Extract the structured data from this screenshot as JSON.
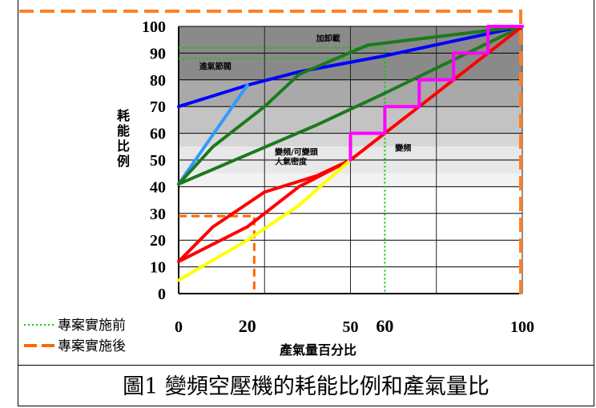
{
  "chart_data": {
    "type": "line",
    "ylabel": "耗能比例",
    "xlabel": "產氣量百分比",
    "xlim": [
      0,
      100
    ],
    "ylim": [
      0,
      100
    ],
    "y_ticks": [
      "0",
      "10",
      "20",
      "30",
      "40",
      "50",
      "60",
      "70",
      "80",
      "90",
      "100"
    ],
    "x_ticks": [
      {
        "value": 0,
        "label": "0"
      },
      {
        "value": 20,
        "label": "20"
      },
      {
        "value": 50,
        "label": "50"
      },
      {
        "value": 60,
        "label": "60"
      },
      {
        "value": 100,
        "label": "100"
      }
    ],
    "region_labels": [
      {
        "text": "加卸載",
        "x": 40,
        "y": 94.5
      },
      {
        "text": "進氣節閥",
        "x": 6,
        "y": 84
      },
      {
        "text": "變頻/可變頭\n大氣密度",
        "x": 28,
        "y": 52
      },
      {
        "text": "變頻",
        "x": 63,
        "y": 53.5
      }
    ],
    "series": [
      {
        "color": "#0000ff",
        "points": [
          [
            0,
            70
          ],
          [
            20,
            78
          ],
          [
            35,
            83
          ],
          [
            60,
            89
          ],
          [
            100,
            100
          ]
        ]
      },
      {
        "color": "#3399ff",
        "points": [
          [
            0,
            41
          ],
          [
            20,
            78
          ]
        ]
      },
      {
        "color": "#1b7a1b",
        "points": [
          [
            0,
            41
          ],
          [
            10,
            55
          ],
          [
            25,
            70
          ],
          [
            35,
            82
          ],
          [
            55,
            93
          ],
          [
            100,
            100
          ]
        ]
      },
      {
        "color": "#1b7a1b",
        "points": [
          [
            0,
            41
          ],
          [
            20,
            52
          ],
          [
            40,
            63
          ],
          [
            60,
            75
          ],
          [
            100,
            100
          ]
        ]
      },
      {
        "color": "#ff0000",
        "points": [
          [
            0,
            12
          ],
          [
            10,
            25
          ],
          [
            25,
            38
          ],
          [
            40,
            44
          ],
          [
            50,
            50
          ],
          [
            60,
            60
          ],
          [
            100,
            100
          ]
        ]
      },
      {
        "color": "#ff0000",
        "points": [
          [
            0,
            12
          ],
          [
            20,
            25
          ],
          [
            35,
            40
          ],
          [
            50,
            50
          ]
        ]
      },
      {
        "color": "#ffff00",
        "points": [
          [
            0,
            5
          ],
          [
            20,
            20
          ],
          [
            35,
            33
          ],
          [
            50,
            50
          ]
        ]
      },
      {
        "color": "#ff00ff",
        "points": [
          [
            50,
            50
          ],
          [
            50,
            60
          ],
          [
            60,
            60
          ],
          [
            60,
            70
          ],
          [
            70,
            70
          ],
          [
            70,
            80
          ],
          [
            80,
            80
          ],
          [
            80,
            90
          ],
          [
            90,
            90
          ],
          [
            90,
            100
          ],
          [
            100,
            100
          ]
        ]
      }
    ],
    "reference_lines": {
      "before": {
        "color": "#00cc00",
        "style": "dotted",
        "points": [
          [
            0,
            92
          ],
          [
            60,
            92
          ],
          [
            60,
            0
          ]
        ],
        "hline2": [
          [
            0,
            88
          ],
          [
            60,
            88
          ]
        ]
      },
      "after": {
        "color": "#ff6600",
        "style": "dashed",
        "points": [
          [
            0,
            29
          ],
          [
            22,
            29
          ],
          [
            22,
            0
          ]
        ]
      }
    },
    "background_bands": [
      {
        "y0": 80,
        "y1": 100,
        "color": "#8a8a8a"
      },
      {
        "y0": 70,
        "y1": 80,
        "color": "#a9a9a9"
      },
      {
        "y0": 60,
        "y1": 70,
        "color": "#c3c3c3"
      },
      {
        "y0": 55,
        "y1": 60,
        "color": "#d6d6d6"
      },
      {
        "y0": 45,
        "y1": 55,
        "color": "#e8e8e8"
      },
      {
        "y0": 40,
        "y1": 45,
        "color": "#f2f2f2"
      }
    ]
  },
  "legend": [
    {
      "label": "專案實施前",
      "color": "#00cc00",
      "style": "dotted"
    },
    {
      "label": "專案實施後",
      "color": "#ff6600",
      "style": "dashed"
    }
  ],
  "caption": "圖1  變頻空壓機的耗能比例和產氣量比"
}
